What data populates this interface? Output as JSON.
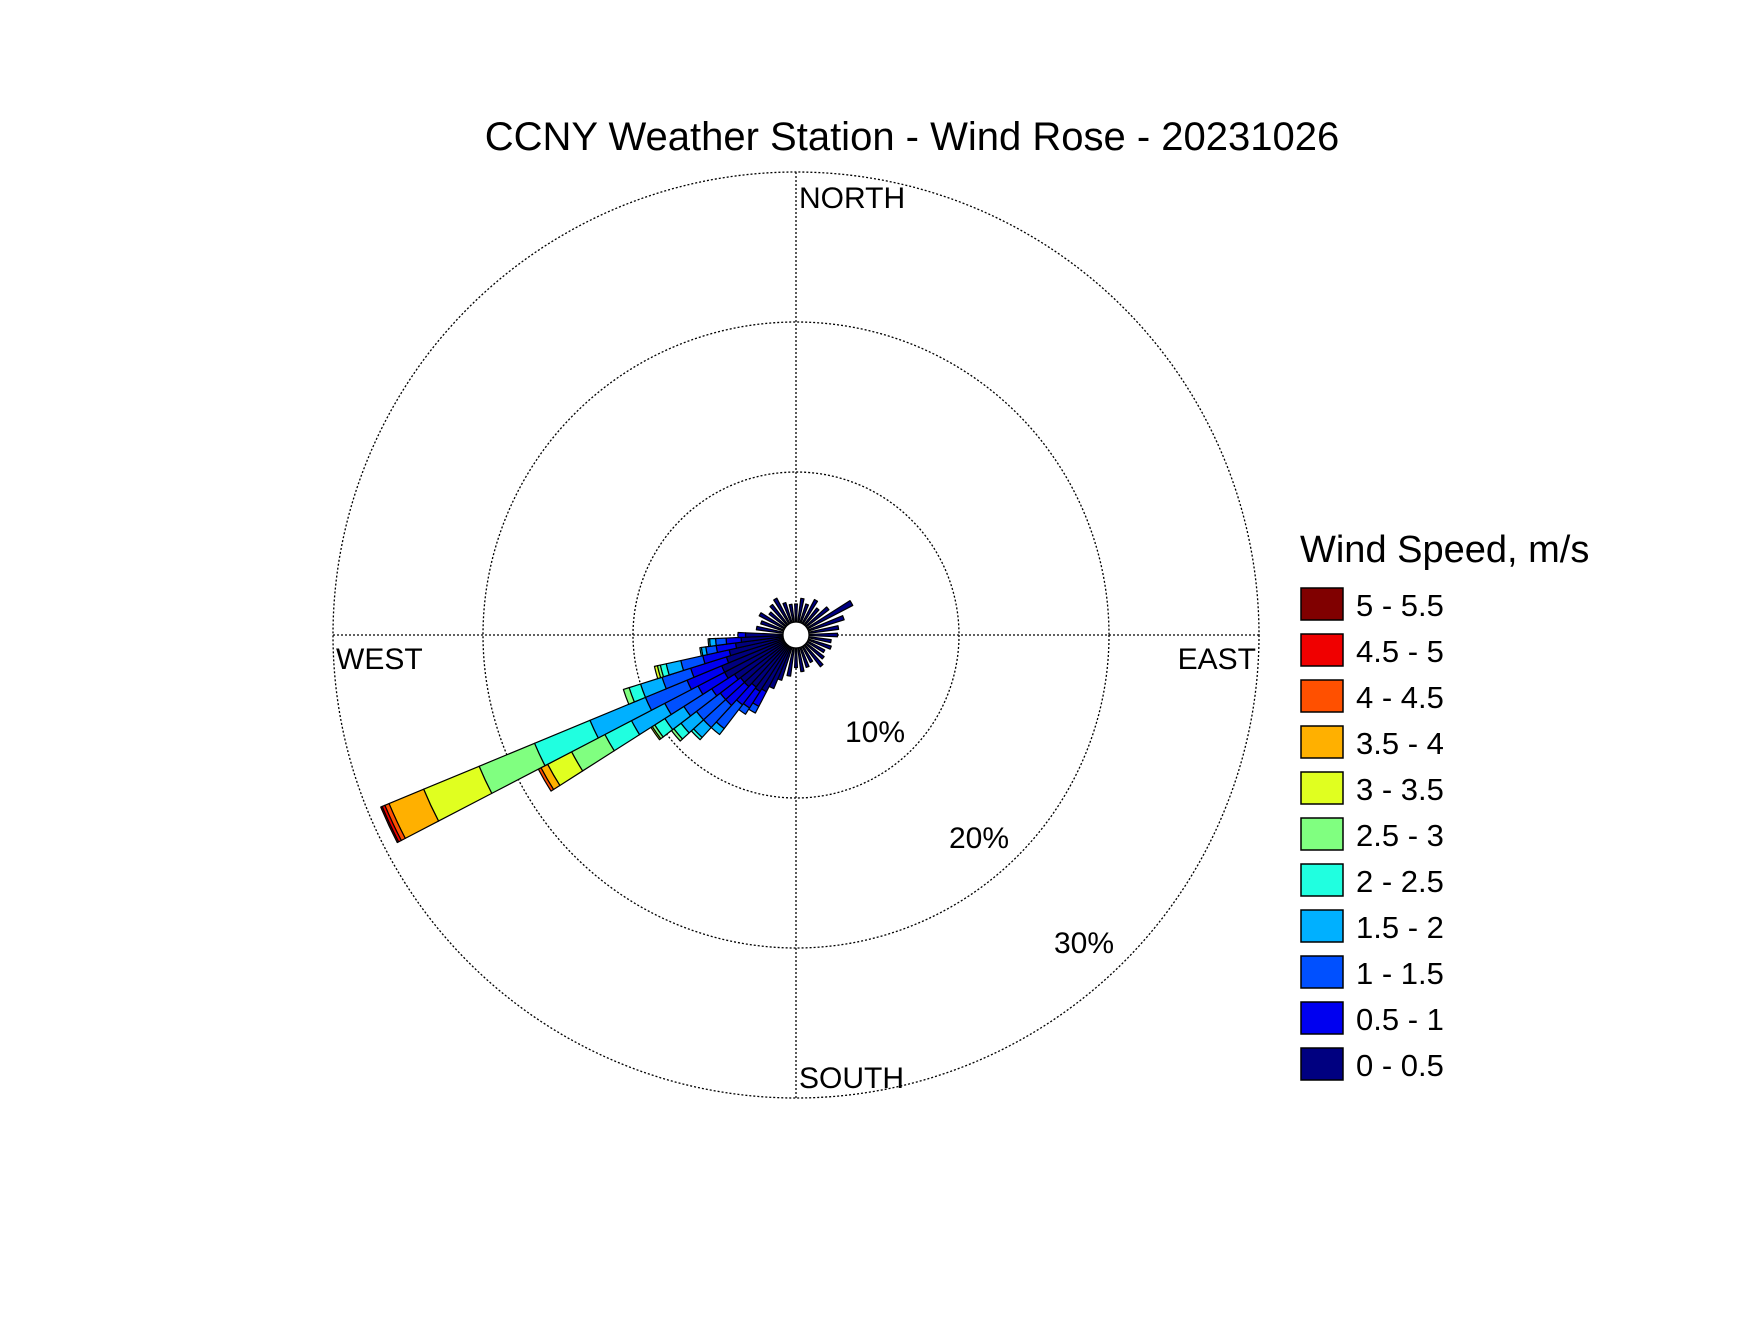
{
  "chart_data": {
    "type": "wind-rose",
    "title": "CCNY Weather Station - Wind Rose - 20231026",
    "direction_labels": {
      "north": "NORTH",
      "east": "EAST",
      "south": "SOUTH",
      "west": "WEST"
    },
    "radial_ticks": [
      {
        "value": 10,
        "label": "10%"
      },
      {
        "value": 20,
        "label": "20%"
      },
      {
        "value": 30,
        "label": "30%"
      }
    ],
    "rmax": 30,
    "legend": {
      "title": "Wind Speed, m/s",
      "placement": "right"
    },
    "speed_bins": [
      {
        "label": "0 - 0.5",
        "color": "#000080"
      },
      {
        "label": "0.5 - 1",
        "color": "#0000f0"
      },
      {
        "label": "1 - 1.5",
        "color": "#0050ff"
      },
      {
        "label": "1.5 - 2",
        "color": "#00b0ff"
      },
      {
        "label": "2 - 2.5",
        "color": "#20ffe0"
      },
      {
        "label": "2.5 - 3",
        "color": "#80ff80"
      },
      {
        "label": "3 - 3.5",
        "color": "#e0ff20"
      },
      {
        "label": "3.5 - 4",
        "color": "#ffb000"
      },
      {
        "label": "4 - 4.5",
        "color": "#ff5000"
      },
      {
        "label": "4.5 - 5",
        "color": "#f00000"
      },
      {
        "label": "5 - 5.5",
        "color": "#800000"
      }
    ],
    "sector_width_deg": 5,
    "sectors": [
      {
        "direction": 0,
        "cum": [
          1.2
        ]
      },
      {
        "direction": 10,
        "cum": [
          1.6
        ]
      },
      {
        "direction": 20,
        "cum": [
          1.3
        ]
      },
      {
        "direction": 30,
        "cum": [
          1.8
        ]
      },
      {
        "direction": 40,
        "cum": [
          1.4
        ]
      },
      {
        "direction": 50,
        "cum": [
          1.9
        ]
      },
      {
        "direction": 60,
        "cum": [
          3.4
        ]
      },
      {
        "direction": 70,
        "cum": [
          2.5
        ]
      },
      {
        "direction": 80,
        "cum": [
          2.0
        ]
      },
      {
        "direction": 90,
        "cum": [
          1.9
        ]
      },
      {
        "direction": 100,
        "cum": [
          1.5
        ]
      },
      {
        "direction": 110,
        "cum": [
          1.6
        ]
      },
      {
        "direction": 120,
        "cum": [
          1.3
        ]
      },
      {
        "direction": 130,
        "cum": [
          1.5
        ]
      },
      {
        "direction": 140,
        "cum": [
          1.8
        ]
      },
      {
        "direction": 150,
        "cum": [
          1.2
        ]
      },
      {
        "direction": 160,
        "cum": [
          1.4
        ]
      },
      {
        "direction": 170,
        "cum": [
          1.6
        ]
      },
      {
        "direction": 180,
        "cum": [
          1.3
        ]
      },
      {
        "direction": 190,
        "cum": [
          1.9
        ]
      },
      {
        "direction": 200,
        "cum": [
          2.3
        ]
      },
      {
        "direction": 205,
        "cum": [
          3.0
        ]
      },
      {
        "direction": 210,
        "cum": [
          3.4,
          4.5,
          5.0
        ]
      },
      {
        "direction": 215,
        "cum": [
          3.6,
          4.9,
          5.4
        ]
      },
      {
        "direction": 220,
        "cum": [
          3.5,
          5.0,
          7.0,
          7.5
        ]
      },
      {
        "direction": 225,
        "cum": [
          3.8,
          5.5,
          7.5,
          8.4,
          8.6
        ]
      },
      {
        "direction": 230,
        "cum": [
          3.8,
          5.5,
          7.5,
          8.8,
          9.4,
          9.6
        ]
      },
      {
        "direction": 235,
        "cum": [
          4.0,
          5.8,
          8.0,
          9.5,
          10.3,
          10.5,
          10.6
        ]
      },
      {
        "direction": 240,
        "cum": [
          4.5,
          6.5,
          9.0,
          11.5,
          13.5,
          16.0,
          17.8,
          18.3,
          18.5
        ]
      },
      {
        "direction": 245,
        "cum": [
          4.5,
          7.0,
          10.0,
          14.0,
          18.0,
          22.0,
          26.0,
          28.5,
          28.8,
          29.0,
          29.1
        ]
      },
      {
        "direction": 250,
        "cum": [
          4.0,
          6.5,
          8.5,
          10.0,
          10.8,
          11.2
        ]
      },
      {
        "direction": 255,
        "cum": [
          3.7,
          5.5,
          7.0,
          8.0,
          8.4,
          8.6,
          8.8
        ]
      },
      {
        "direction": 260,
        "cum": [
          3.2,
          4.5,
          5.2,
          5.5,
          5.6
        ]
      },
      {
        "direction": 265,
        "cum": [
          2.8,
          3.8,
          4.5,
          4.9,
          5.0
        ]
      },
      {
        "direction": 270,
        "cum": [
          2.5,
          3.0
        ]
      },
      {
        "direction": 280,
        "cum": [
          1.8
        ]
      },
      {
        "direction": 290,
        "cum": [
          1.6
        ]
      },
      {
        "direction": 300,
        "cum": [
          1.9
        ]
      },
      {
        "direction": 310,
        "cum": [
          1.4
        ]
      },
      {
        "direction": 320,
        "cum": [
          1.7
        ]
      },
      {
        "direction": 330,
        "cum": [
          1.9
        ]
      },
      {
        "direction": 340,
        "cum": [
          1.4
        ]
      },
      {
        "direction": 350,
        "cum": [
          1.2
        ]
      }
    ]
  }
}
